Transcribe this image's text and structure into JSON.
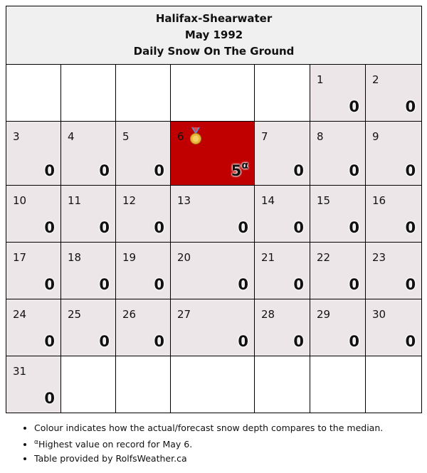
{
  "title": {
    "station": "Halifax-Shearwater",
    "month": "May 1992",
    "metric": "Daily Snow On The Ground"
  },
  "colors": {
    "normal": "#ede6e8",
    "record": "#c00000"
  },
  "weeks": [
    [
      null,
      null,
      null,
      null,
      null,
      {
        "day": "1",
        "value": "0"
      },
      {
        "day": "2",
        "value": "0"
      }
    ],
    [
      {
        "day": "3",
        "value": "0"
      },
      {
        "day": "4",
        "value": "0"
      },
      {
        "day": "5",
        "value": "0"
      },
      {
        "day": "6",
        "value": "5",
        "mark": "α",
        "record": true,
        "icon": "medal-icon"
      },
      {
        "day": "7",
        "value": "0"
      },
      {
        "day": "8",
        "value": "0"
      },
      {
        "day": "9",
        "value": "0"
      }
    ],
    [
      {
        "day": "10",
        "value": "0"
      },
      {
        "day": "11",
        "value": "0"
      },
      {
        "day": "12",
        "value": "0"
      },
      {
        "day": "13",
        "value": "0"
      },
      {
        "day": "14",
        "value": "0"
      },
      {
        "day": "15",
        "value": "0"
      },
      {
        "day": "16",
        "value": "0"
      }
    ],
    [
      {
        "day": "17",
        "value": "0"
      },
      {
        "day": "18",
        "value": "0"
      },
      {
        "day": "19",
        "value": "0"
      },
      {
        "day": "20",
        "value": "0"
      },
      {
        "day": "21",
        "value": "0"
      },
      {
        "day": "22",
        "value": "0"
      },
      {
        "day": "23",
        "value": "0"
      }
    ],
    [
      {
        "day": "24",
        "value": "0"
      },
      {
        "day": "25",
        "value": "0"
      },
      {
        "day": "26",
        "value": "0"
      },
      {
        "day": "27",
        "value": "0"
      },
      {
        "day": "28",
        "value": "0"
      },
      {
        "day": "29",
        "value": "0"
      },
      {
        "day": "30",
        "value": "0"
      }
    ],
    [
      {
        "day": "31",
        "value": "0"
      },
      null,
      null,
      null,
      null,
      null,
      null
    ]
  ],
  "notes": [
    {
      "text": "Colour indicates how the actual/forecast snow depth compares to the median."
    },
    {
      "mark": "α",
      "text": "Highest value on record for May 6."
    },
    {
      "text": "Table provided by RolfsWeather.ca"
    }
  ]
}
